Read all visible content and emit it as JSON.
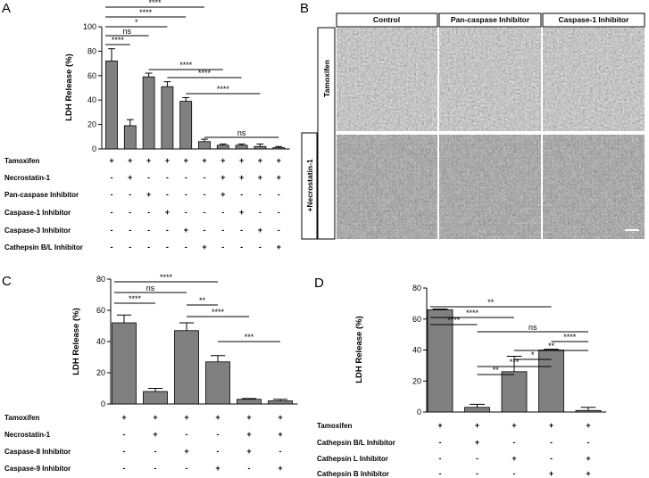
{
  "panel_b": {
    "panel": "B",
    "columns": [
      "Control",
      "Pan-caspase Inhibitor",
      "Caspase-1 Inhibitor"
    ],
    "rows": [
      "Tamoxifen",
      "+Necrostatin-1"
    ]
  },
  "chart_data": [
    {
      "type": "bar",
      "panel": "A",
      "y_label": "LDH Release (%)",
      "ylim": [
        0,
        100
      ],
      "yticks": [
        0,
        20,
        40,
        60,
        80,
        100
      ],
      "color": "#808080",
      "values": [
        72,
        19,
        59,
        51,
        39,
        6,
        3,
        3,
        2,
        1
      ],
      "errors": [
        10,
        5,
        3,
        4,
        3,
        2,
        1,
        1,
        2,
        1
      ],
      "conditions": [
        {
          "name": "Tamoxifen",
          "signs": [
            "+",
            "+",
            "+",
            "+",
            "+",
            "+",
            "+",
            "+",
            "+",
            "+"
          ]
        },
        {
          "name": "Necrostatin-1",
          "signs": [
            "-",
            "+",
            "-",
            "-",
            "-",
            "-",
            "+",
            "+",
            "+",
            "+"
          ]
        },
        {
          "name": "Pan-caspase Inhibitor",
          "signs": [
            "-",
            "-",
            "+",
            "-",
            "-",
            "-",
            "+",
            "-",
            "-",
            "-"
          ]
        },
        {
          "name": "Caspase-1 Inhibitor",
          "signs": [
            "-",
            "-",
            "-",
            "+",
            "-",
            "-",
            "-",
            "+",
            "-",
            "-"
          ]
        },
        {
          "name": "Caspase-3 Inhibitor",
          "signs": [
            "-",
            "-",
            "-",
            "-",
            "+",
            "-",
            "-",
            "-",
            "+",
            "-"
          ]
        },
        {
          "name": "Cathepsin B/L Inhibitor",
          "signs": [
            "-",
            "-",
            "-",
            "-",
            "-",
            "+",
            "-",
            "-",
            "-",
            "+"
          ]
        }
      ],
      "annotations": [
        "****",
        "****",
        "*",
        "ns",
        "****",
        "****",
        "****",
        "****",
        "ns"
      ]
    },
    {
      "type": "bar",
      "panel": "C",
      "y_label": "LDH Release (%)",
      "ylim": [
        0,
        80
      ],
      "yticks": [
        0,
        20,
        40,
        60,
        80
      ],
      "color": "#808080",
      "values": [
        52,
        8,
        47,
        27,
        3,
        2
      ],
      "errors": [
        5,
        2,
        5,
        4,
        0.5,
        1
      ],
      "conditions": [
        {
          "name": "Tamoxifen",
          "signs": [
            "+",
            "+",
            "+",
            "+",
            "+",
            "+"
          ]
        },
        {
          "name": "Necrostatin-1",
          "signs": [
            "-",
            "+",
            "-",
            "-",
            "+",
            "+"
          ]
        },
        {
          "name": "Caspase-8 Inhibitor",
          "signs": [
            "-",
            "-",
            "+",
            "-",
            "+",
            "-"
          ]
        },
        {
          "name": "Caspase-9 Inhibitor",
          "signs": [
            "-",
            "-",
            "-",
            "+",
            "-",
            "+"
          ]
        }
      ],
      "annotations": [
        "****",
        "ns",
        "****",
        "**",
        "****",
        "***"
      ]
    },
    {
      "type": "bar",
      "panel": "D",
      "y_label": "LDH Release (%)",
      "ylim": [
        0,
        80
      ],
      "yticks": [
        0,
        20,
        40,
        60,
        80
      ],
      "color": "#808080",
      "values": [
        66,
        3,
        26,
        40,
        1
      ],
      "errors": [
        0.5,
        2,
        10,
        0.5,
        2
      ],
      "conditions": [
        {
          "name": "Tamoxifen",
          "signs": [
            "+",
            "+",
            "+",
            "+",
            "+"
          ]
        },
        {
          "name": "Cathepsin B/L Inhibitor",
          "signs": [
            "-",
            "+",
            "-",
            "-",
            "-"
          ]
        },
        {
          "name": "Cathepsin L Inhibitor",
          "signs": [
            "-",
            "-",
            "+",
            "-",
            "+"
          ]
        },
        {
          "name": "Cathepsin B Inhibitor",
          "signs": [
            "-",
            "-",
            "-",
            "+",
            "+"
          ]
        }
      ],
      "annotations": [
        "**",
        "****",
        "****",
        "ns",
        "****",
        "**",
        "*",
        "***",
        "**"
      ]
    }
  ]
}
